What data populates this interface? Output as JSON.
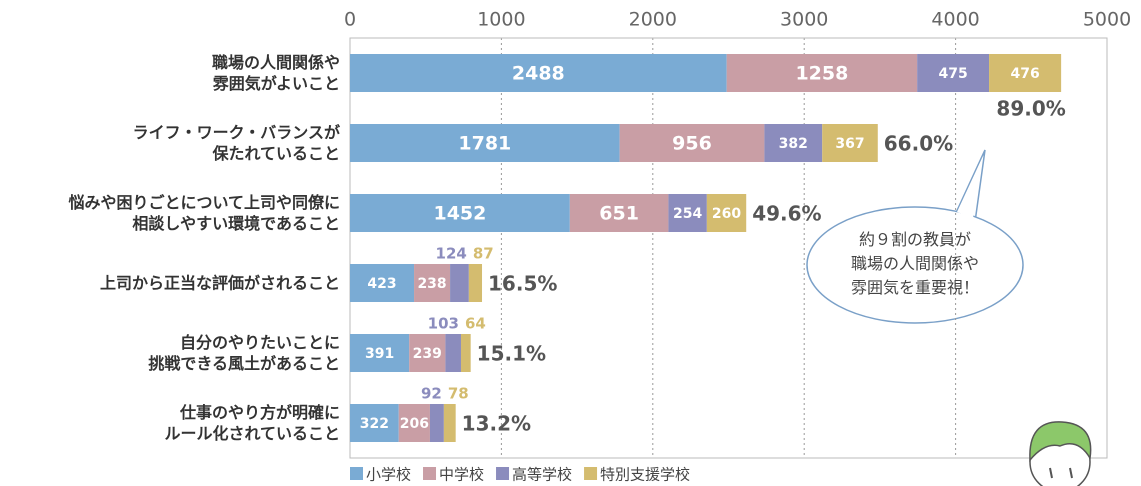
{
  "chart_data": {
    "type": "stacked-barh",
    "categories": [
      "職場の人間関係や\n雰囲気がよいこと",
      "ライフ・ワーク・バランスが\n保たれていること",
      "悩みや困りごとについて上司や同僚に\n相談しやすい環境であること",
      "上司から正当な評価がされること",
      "自分のやりたいことに\n挑戦できる風土があること",
      "仕事のやり方が明確に\nルール化されていること"
    ],
    "series": [
      {
        "name": "小学校",
        "color": "#7aabd4",
        "values": [
          2488,
          1781,
          1452,
          423,
          391,
          322
        ]
      },
      {
        "name": "中学校",
        "color": "#c99ea5",
        "values": [
          1258,
          956,
          651,
          238,
          239,
          206
        ]
      },
      {
        "name": "高等学校",
        "color": "#8b8cbd",
        "values": [
          475,
          382,
          254,
          124,
          103,
          92
        ]
      },
      {
        "name": "特別支援学校",
        "color": "#d4bc6f",
        "values": [
          476,
          367,
          260,
          87,
          64,
          78
        ]
      }
    ],
    "percent_labels": [
      "89.0%",
      "66.0%",
      "49.6%",
      "16.5%",
      "15.1%",
      "13.2%"
    ],
    "xlim": [
      0,
      5000
    ],
    "xticks": [
      0,
      1000,
      2000,
      3000,
      4000,
      5000
    ],
    "grid": true,
    "annotation": "約９割の教員が\n職場の人間関係や\n雰囲気を重要視！"
  }
}
